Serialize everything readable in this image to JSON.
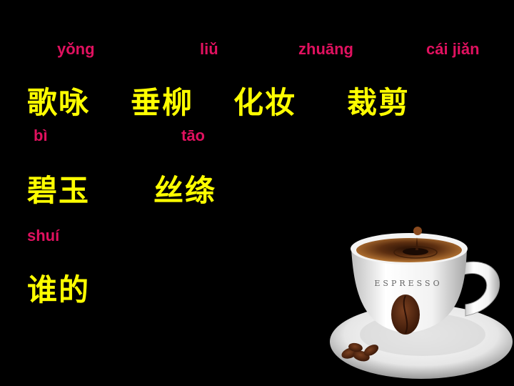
{
  "colors": {
    "background": "#000000",
    "pinyin": "#e0115f",
    "characters": "#ffff00"
  },
  "pinyin": {
    "yong": "yǒng",
    "liu": "liǔ",
    "zhuang": "zhuāng",
    "cai_jian": "cái  jiǎn",
    "bi": "bì",
    "tao": "tāo",
    "shui": "shuí"
  },
  "words": {
    "geyong": "歌咏",
    "chuiliu": "垂柳",
    "huazhuang": "化妆",
    "caijian": "裁剪",
    "biyu": "碧玉",
    "sitao": "丝绦",
    "shuide": "谁的"
  },
  "cup": {
    "label": "ESPRESSO"
  },
  "icons": {
    "cup": "espresso-cup-illustration",
    "beans": "coffee-beans-illustration"
  }
}
